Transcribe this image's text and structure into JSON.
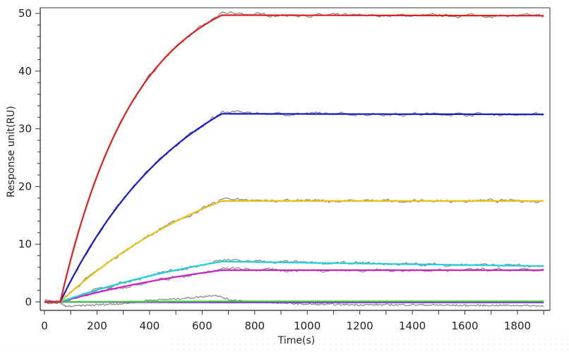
{
  "chart_data": {
    "type": "line",
    "title": "",
    "xlabel": "Time(s)",
    "ylabel": "Response unit(RU)",
    "xlim": [
      -20,
      1920
    ],
    "ylim": [
      -1.5,
      51
    ],
    "x_ticks": [
      0,
      200,
      400,
      600,
      800,
      1000,
      1200,
      1400,
      1600,
      1800
    ],
    "y_ticks": [
      0,
      10,
      20,
      30,
      40,
      50
    ],
    "grid": false,
    "legend": null,
    "association_start_s": 60,
    "dissociation_start_s": 675,
    "end_s": 1900,
    "series": [
      {
        "name": "red",
        "color": "#e02020",
        "rmax": 56,
        "k_on": 0.0035,
        "plateau": 49.7,
        "end_value": 49.6,
        "noise_color": "#8c8c8c"
      },
      {
        "name": "blue",
        "color": "#1a1acc",
        "rmax": 45,
        "k_on": 0.0021,
        "plateau": 32.6,
        "end_value": 32.5,
        "noise_color": "#8c8c8c"
      },
      {
        "name": "yellow",
        "color": "#e8c21a",
        "rmax": 30,
        "k_on": 0.0014,
        "plateau": 17.5,
        "end_value": 17.5,
        "noise_color": "#8c8c8c"
      },
      {
        "name": "cyan",
        "color": "#20d0d8",
        "rmax": 13,
        "k_on": 0.0012,
        "plateau": 7.0,
        "end_value": 6.2,
        "noise_color": "#8c8c8c"
      },
      {
        "name": "magenta",
        "color": "#d020c8",
        "rmax": 10,
        "k_on": 0.0012,
        "plateau": 5.5,
        "end_value": 5.5,
        "noise_color": "#8c8c8c"
      },
      {
        "name": "green",
        "color": "#3cc83c",
        "rmax": 0,
        "k_on": 0,
        "plateau": 0.1,
        "end_value": 0.1,
        "noise_color": "#8c8c8c"
      },
      {
        "name": "purple",
        "color": "#8a2be2",
        "rmax": 0,
        "k_on": 0,
        "plateau": -0.1,
        "end_value": -0.1,
        "noise_color": "#8c8c8c"
      }
    ],
    "raw_low_trace": {
      "color": "#8c8c8c",
      "points": [
        [
          0,
          0.3
        ],
        [
          60,
          -0.1
        ],
        [
          80,
          -0.8
        ],
        [
          200,
          -0.5
        ],
        [
          300,
          -0.3
        ],
        [
          400,
          0.3
        ],
        [
          500,
          0.5
        ],
        [
          600,
          0.9
        ],
        [
          650,
          1.2
        ],
        [
          700,
          0.4
        ],
        [
          800,
          0.0
        ],
        [
          1000,
          -0.4
        ],
        [
          1200,
          -0.5
        ],
        [
          1400,
          -0.5
        ],
        [
          1600,
          -0.6
        ],
        [
          1800,
          -0.6
        ],
        [
          1900,
          -0.7
        ]
      ]
    }
  },
  "axes": {
    "x_tick_labels": [
      "0",
      "200",
      "400",
      "600",
      "800",
      "1000",
      "1200",
      "1400",
      "1600",
      "1800"
    ],
    "y_tick_labels": [
      "0",
      "10",
      "20",
      "30",
      "40",
      "50"
    ],
    "x_title": "Time(s)",
    "y_title": "Response unit(RU)"
  }
}
